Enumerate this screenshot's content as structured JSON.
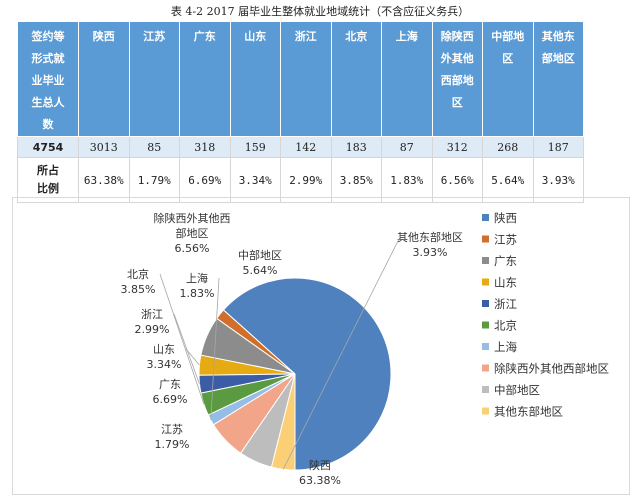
{
  "table": {
    "caption": "表 4-2     2017 届毕业生整体就业地域统计（不含应征义务兵）",
    "header_first": [
      "签约等",
      "形式就",
      "业毕业",
      "生总人",
      "数"
    ],
    "regions": [
      [
        "陕西"
      ],
      [
        "江苏"
      ],
      [
        "广东"
      ],
      [
        "山东"
      ],
      [
        "浙江"
      ],
      [
        "北京"
      ],
      [
        "上海"
      ],
      [
        "除陕西",
        "外其他",
        "西部地",
        "区"
      ],
      [
        "中部地",
        "区"
      ],
      [
        "其他东",
        "部地区"
      ]
    ],
    "total_label": "4754",
    "counts": [
      "3013",
      "85",
      "318",
      "159",
      "142",
      "183",
      "87",
      "312",
      "268",
      "187"
    ],
    "pct_label": [
      "所占",
      "比例"
    ],
    "percents": [
      "63.38%",
      "1.79%",
      "6.69%",
      "3.34%",
      "2.99%",
      "3.85%",
      "1.83%",
      "6.56%",
      "5.64%",
      "3.93%"
    ]
  },
  "chart_data": {
    "type": "pie",
    "categories": [
      "陕西",
      "江苏",
      "广东",
      "山东",
      "浙江",
      "北京",
      "上海",
      "除陕西外其他西部地区",
      "中部地区",
      "其他东部地区"
    ],
    "values": [
      63.38,
      1.79,
      6.69,
      3.34,
      2.99,
      3.85,
      1.83,
      6.56,
      5.64,
      3.93
    ],
    "value_labels": [
      "63.38%",
      "1.79%",
      "6.69%",
      "3.34%",
      "2.99%",
      "3.85%",
      "1.83%",
      "6.56%",
      "5.64%",
      "3.93%"
    ],
    "slice_labels": [
      [
        "陕西"
      ],
      [
        "江苏"
      ],
      [
        "广东"
      ],
      [
        "山东"
      ],
      [
        "浙江"
      ],
      [
        "北京"
      ],
      [
        "上海"
      ],
      [
        "除陕西外其他西",
        "部地区"
      ],
      [
        "中部地区"
      ],
      [
        "其他东部地区"
      ]
    ],
    "colors": [
      "#4e81bd",
      "#d06f2b",
      "#8c8c8c",
      "#e6aa12",
      "#3a5da6",
      "#5a9b42",
      "#96bde6",
      "#f2a588",
      "#bdbdbd",
      "#fbcf76"
    ],
    "legend": [
      "陕西",
      "江苏",
      "广东",
      "山东",
      "浙江",
      "北京",
      "上海",
      "除陕西外其他西部地区",
      "中部地区",
      "其他东部地区"
    ],
    "legend_position": "right"
  }
}
